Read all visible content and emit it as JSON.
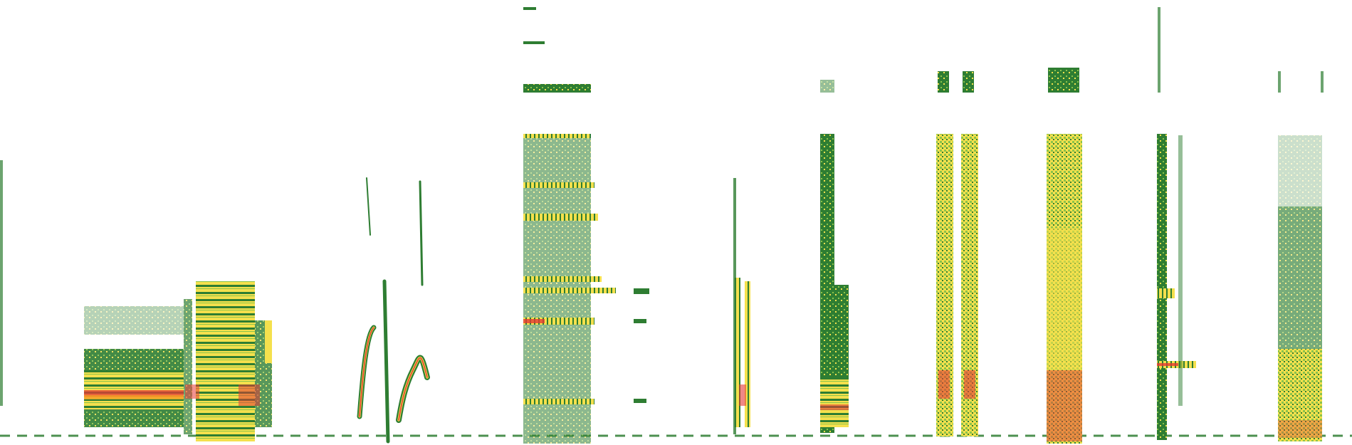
{
  "image": {
    "kind": "spectrogram",
    "palette": {
      "background": "#ffffff",
      "low": "#2e7d32",
      "mid": "#8bc34a",
      "high": "#f4e04d",
      "peak": "#e53935"
    }
  }
}
